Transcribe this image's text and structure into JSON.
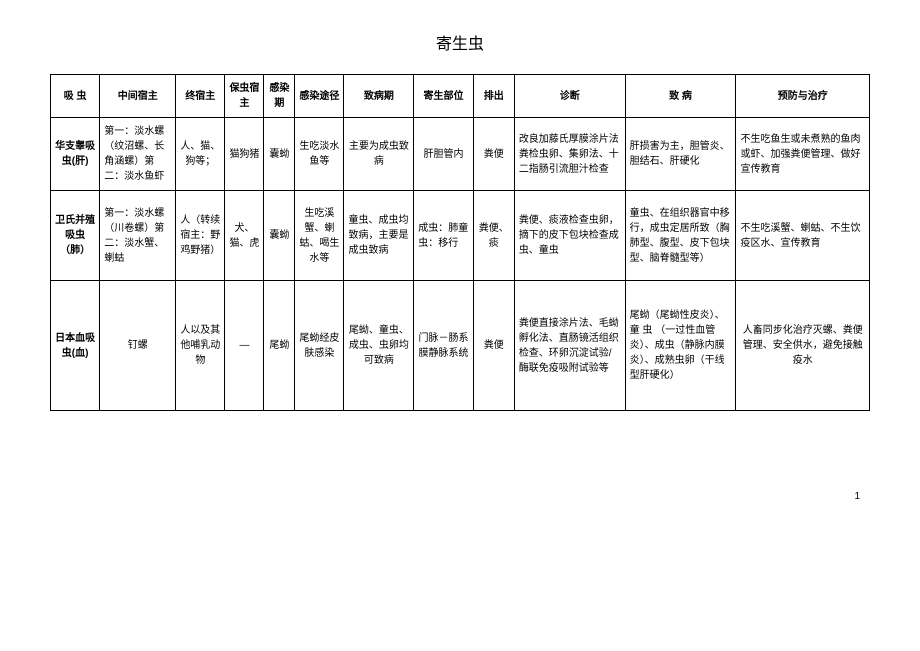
{
  "title": "寄生虫",
  "headers": [
    "吸 虫",
    "中间宿主",
    "终宿主",
    "保虫宿主",
    "感染期",
    "感染途径",
    "致病期",
    "寄生部位",
    "排出",
    "诊断",
    "致 病",
    "预防与治疗"
  ],
  "rows": [
    {
      "name": "华支睾吸虫(肝)",
      "intermediate_host": "第一：淡水螺（纹沼螺、长角涵螺）第二：淡水鱼虾",
      "final_host": "人、猫、狗等；",
      "reservoir_host": "猫狗猪",
      "infection_stage": "囊蚴",
      "infection_route": "生吃淡水鱼等",
      "pathogenic_stage": "主要为成虫致病",
      "parasitic_site": "肝胆管内",
      "excretion": "粪便",
      "diagnosis": "改良加藤氏厚膜涂片法粪检虫卵、集卵法、十二指肠引流胆汁检查",
      "pathology": "肝损害为主，胆管炎、胆结石、肝硬化",
      "prevention": "不生吃鱼生或未煮熟的鱼肉或虾、加强粪便管理、做好宣传教育"
    },
    {
      "name": "卫氏并殖吸虫（肺）",
      "intermediate_host": "第一：淡水螺（川卷螺）第二：淡水蟹、蝲蛄",
      "final_host": "人（转续宿主：野鸡野猪）",
      "reservoir_host": "犬、猫、虎",
      "infection_stage": "囊蚴",
      "infection_route": "生吃溪蟹、蝲蛄、喝生水等",
      "pathogenic_stage": "童虫、成虫均致病，主要是成虫致病",
      "parasitic_site": "成虫：肺童虫：移行",
      "excretion": "粪便、痰",
      "diagnosis": "粪便、痰液检查虫卵，摘下的皮下包块检查成虫、童虫",
      "pathology": "童虫、在组织器官中移行，成虫定居所致（胸肺型、腹型、皮下包块型、脑脊髓型等）",
      "prevention": "不生吃溪蟹、蝲蛄、不生饮疫区水、宣传教育"
    },
    {
      "name": "日本血吸虫(血)",
      "intermediate_host": "钉螺",
      "final_host": "人以及其他哺乳动物",
      "reservoir_host": "—",
      "infection_stage": "尾蚴",
      "infection_route": "尾蚴经皮肤感染",
      "pathogenic_stage": "尾蚴、童虫、成虫、虫卵均可致病",
      "parasitic_site": "门脉－肠系膜静脉系统",
      "excretion": "粪便",
      "diagnosis": "粪便直接涂片法、毛蚴孵化法、直肠镜活组织检查、环卵沉淀试验/酶联免疫吸附试验等",
      "pathology": "尾蚴（尾蚴性皮炎）、童 虫 （一过性血管炎）、成虫（静脉内膜炎）、成熟虫卵（干线型肝硬化）",
      "prevention": "人畜同步化治疗灭螺、粪便管理、安全供水，避免接触疫水"
    }
  ],
  "page_number": "1"
}
